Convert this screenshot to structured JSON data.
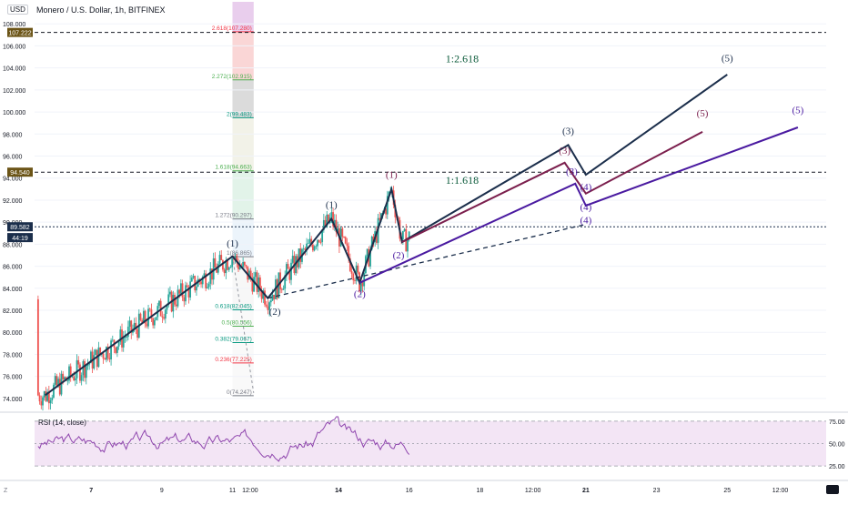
{
  "header": {
    "currency": "USD",
    "symbol_line": "Monero / U.S. Dollar, 1h, BITFINEX",
    "rsi_label": "RSI (14, close)"
  },
  "colors": {
    "up": "#26a69a",
    "down": "#ef5350",
    "wave_navy": "#1b2e4b",
    "wave_maroon": "#7b1f4d",
    "wave_purple": "#4a1aa0",
    "rsi_line": "#8e44ad",
    "rsi_band": "#f3e5f5",
    "price_tag": "#6b5416",
    "current_tag": "#1b2e4b"
  },
  "chart_data": {
    "type": "line",
    "y_axis_labels": [
      "74.000",
      "76.000",
      "78.000",
      "80.000",
      "82.000",
      "84.000",
      "86.000",
      "88.000",
      "90.000",
      "92.000",
      "94.000",
      "96.000",
      "98.000",
      "100.000",
      "102.000",
      "104.000",
      "106.000",
      "108.000"
    ],
    "ylim": [
      73.0,
      110.0
    ],
    "x_tick_labels": [
      {
        "label": "7",
        "x": 7.0
      },
      {
        "label": "9",
        "x": 9.0
      },
      {
        "label": "11",
        "x": 11.0
      },
      {
        "label": "12:00",
        "x": 11.5
      },
      {
        "label": "14",
        "x": 14.0
      },
      {
        "label": "16",
        "x": 16.0
      },
      {
        "label": "18",
        "x": 18.0
      },
      {
        "label": "12:00",
        "x": 19.5
      },
      {
        "label": "21",
        "x": 21.0
      },
      {
        "label": "23",
        "x": 23.0
      },
      {
        "label": "25",
        "x": 25.0
      },
      {
        "label": "12:00",
        "x": 26.5
      }
    ],
    "xlim": [
      5.4,
      27.8
    ],
    "price_tags": [
      {
        "value": 107.222,
        "text": "107.222",
        "kind": "level"
      },
      {
        "value": 94.54,
        "text": "94.540",
        "kind": "level"
      },
      {
        "value": 89.582,
        "text": "89.582",
        "kind": "current"
      },
      {
        "value": 88.6,
        "text": "44:19",
        "kind": "countdown"
      }
    ],
    "fib_levels": [
      {
        "label": "2.618(107.280)",
        "value": 107.28,
        "color": "#f23645"
      },
      {
        "label": "2.272(102.915)",
        "value": 102.915,
        "color": "#4caf50"
      },
      {
        "label": "2(99.483)",
        "value": 99.483,
        "color": "#089981"
      },
      {
        "label": "1.618(94.663)",
        "value": 94.663,
        "color": "#4caf50"
      },
      {
        "label": "1.272(90.297)",
        "value": 90.297,
        "color": "#787b86"
      },
      {
        "label": "1(86.865)",
        "value": 86.865,
        "color": "#787b86"
      },
      {
        "label": "0.618(82.045)",
        "value": 82.045,
        "color": "#089981"
      },
      {
        "label": "0.5(80.556)",
        "value": 80.556,
        "color": "#4caf50"
      },
      {
        "label": "0.382(79.067)",
        "value": 79.067,
        "color": "#089981"
      },
      {
        "label": "0.236(77.225)",
        "value": 77.225,
        "color": "#f23645"
      },
      {
        "label": "0(74.247)",
        "value": 74.247,
        "color": "#787b86"
      }
    ],
    "ratio_labels": [
      {
        "text": "1:2.618",
        "x": 17.5,
        "y": 104.5
      },
      {
        "text": "1:1.618",
        "x": 17.5,
        "y": 93.5
      }
    ],
    "series": [
      {
        "name": "",
        "color_key": "wave_navy",
        "points": [
          [
            5.7,
            74.3
          ],
          [
            11.0,
            86.9
          ],
          [
            12.0,
            83.1
          ],
          [
            13.8,
            90.3
          ],
          [
            14.6,
            84.5
          ],
          [
            15.5,
            93.0
          ],
          [
            15.8,
            88.2
          ],
          [
            20.5,
            97.0
          ],
          [
            21.0,
            94.3
          ],
          [
            25.0,
            103.4
          ]
        ]
      },
      {
        "name": "",
        "color_key": "wave_maroon",
        "points": [
          [
            15.8,
            88.2
          ],
          [
            20.4,
            95.4
          ],
          [
            21.0,
            92.6
          ],
          [
            24.3,
            98.2
          ]
        ]
      },
      {
        "name": "",
        "color_key": "wave_purple",
        "points": [
          [
            14.6,
            84.5
          ],
          [
            20.7,
            93.5
          ],
          [
            21.0,
            91.5
          ],
          [
            27.0,
            98.6
          ]
        ]
      }
    ],
    "dashed_trend": [
      [
        12.0,
        83.1
      ],
      [
        21.0,
        89.8
      ]
    ],
    "wave_labels": [
      {
        "text": "(1)",
        "x": 11.0,
        "y": 87.8,
        "color_key": "wave_navy"
      },
      {
        "text": "(2)",
        "x": 12.2,
        "y": 81.6,
        "color_key": "wave_navy"
      },
      {
        "text": "(1)",
        "x": 13.8,
        "y": 91.3,
        "color_key": "wave_navy"
      },
      {
        "text": "(2)",
        "x": 14.6,
        "y": 83.2,
        "color_key": "wave_purple"
      },
      {
        "text": "(1)",
        "x": 15.5,
        "y": 94.0,
        "color_key": "wave_maroon"
      },
      {
        "text": "(2)",
        "x": 15.7,
        "y": 86.7,
        "color_key": "wave_purple"
      },
      {
        "text": "(3)",
        "x": 20.5,
        "y": 98.0,
        "color_key": "wave_navy"
      },
      {
        "text": "(3)",
        "x": 20.4,
        "y": 96.2,
        "color_key": "wave_maroon"
      },
      {
        "text": "(3)",
        "x": 20.6,
        "y": 94.3,
        "color_key": "wave_purple"
      },
      {
        "text": "(4)",
        "x": 21.0,
        "y": 92.9,
        "color_key": "wave_purple"
      },
      {
        "text": "(4)",
        "x": 21.0,
        "y": 91.1,
        "color_key": "wave_purple"
      },
      {
        "text": "(4)",
        "x": 21.0,
        "y": 89.9,
        "color_key": "wave_purple"
      },
      {
        "text": "(5)",
        "x": 25.0,
        "y": 104.6,
        "color_key": "wave_navy"
      },
      {
        "text": "(5)",
        "x": 24.3,
        "y": 99.6,
        "color_key": "wave_maroon"
      },
      {
        "text": "(5)",
        "x": 27.0,
        "y": 99.9,
        "color_key": "wave_purple"
      }
    ],
    "rsi": {
      "levels": [
        {
          "text": "75.00",
          "value": 75
        },
        {
          "text": "50.00",
          "value": 50
        },
        {
          "text": "25.00",
          "value": 25
        }
      ],
      "ylim": [
        15,
        82
      ]
    }
  }
}
